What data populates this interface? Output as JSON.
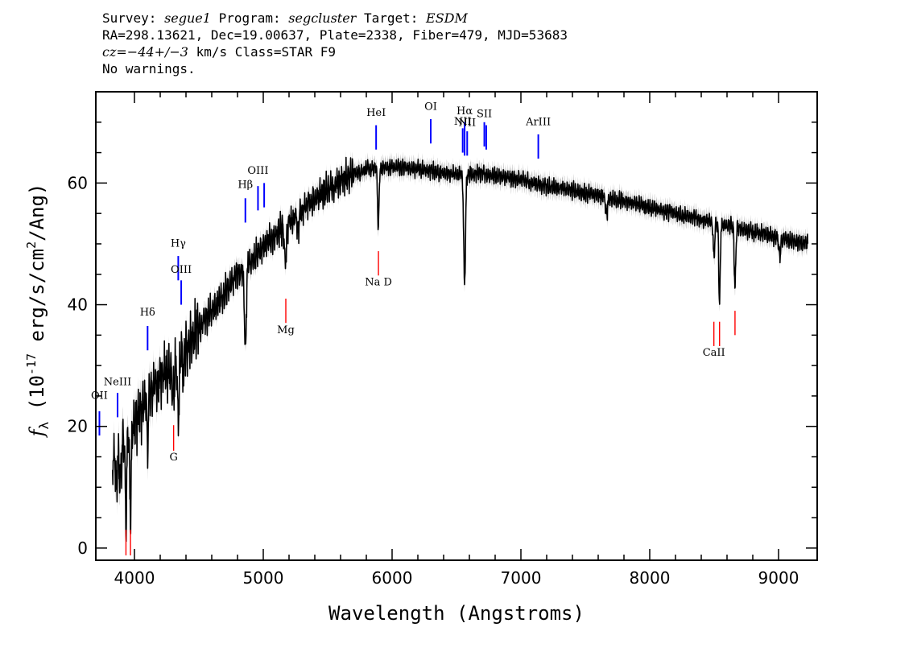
{
  "header": {
    "line1": {
      "survey_label": "Survey: ",
      "survey": "segue1",
      "program_label": " Program: ",
      "program": "segcluster",
      "target_label": " Target: ",
      "target": "ESDM"
    },
    "line2": "RA=298.13621, Dec=19.00637, Plate=2338, Fiber=479, MJD=53683",
    "line3": {
      "cz": "cz=−44+/−3",
      "rest": " km/s Class=STAR F9"
    },
    "line4": "No warnings."
  },
  "colors": {
    "emission": "#0000ff",
    "absorption": "#ff0000",
    "spectrum": "#000000",
    "error": "#b3b3b3"
  },
  "chart_data": {
    "type": "line",
    "title": "",
    "xlabel": "Wavelength (Angstroms)",
    "ylabel": "fλ (10^-17 erg/s/cm^2/Ang)",
    "xlim": [
      3700,
      9300
    ],
    "ylim": [
      -2,
      75
    ],
    "x_ticks": [
      4000,
      5000,
      6000,
      7000,
      8000,
      9000
    ],
    "y_ticks": [
      0,
      20,
      40,
      60
    ],
    "grid": false,
    "continuum": [
      [
        3830,
        14
      ],
      [
        3900,
        17
      ],
      [
        3950,
        19
      ],
      [
        4000,
        20
      ],
      [
        4100,
        25
      ],
      [
        4200,
        28
      ],
      [
        4300,
        30
      ],
      [
        4400,
        33
      ],
      [
        4500,
        36
      ],
      [
        4600,
        39
      ],
      [
        4700,
        42
      ],
      [
        4800,
        45
      ],
      [
        4900,
        47
      ],
      [
        5000,
        49.5
      ],
      [
        5100,
        51.5
      ],
      [
        5200,
        53.5
      ],
      [
        5300,
        55.5
      ],
      [
        5400,
        57.5
      ],
      [
        5500,
        59
      ],
      [
        5600,
        60.5
      ],
      [
        5700,
        61.5
      ],
      [
        5800,
        62.2
      ],
      [
        5900,
        62.5
      ],
      [
        6000,
        62.6
      ],
      [
        6100,
        62.6
      ],
      [
        6200,
        62.3
      ],
      [
        6300,
        62
      ],
      [
        6400,
        61.7
      ],
      [
        6500,
        61.4
      ],
      [
        6600,
        61.6
      ],
      [
        6700,
        61.5
      ],
      [
        6800,
        61.2
      ],
      [
        6900,
        60.8
      ],
      [
        7000,
        60.5
      ],
      [
        7100,
        60
      ],
      [
        7200,
        59.5
      ],
      [
        7300,
        59.2
      ],
      [
        7400,
        58.8
      ],
      [
        7500,
        58.3
      ],
      [
        7600,
        58
      ],
      [
        7700,
        57.5
      ],
      [
        7800,
        57
      ],
      [
        7900,
        56.5
      ],
      [
        8000,
        56
      ],
      [
        8100,
        55.5
      ],
      [
        8200,
        55
      ],
      [
        8300,
        54.5
      ],
      [
        8400,
        54
      ],
      [
        8500,
        53.5
      ],
      [
        8600,
        53
      ],
      [
        8700,
        52.5
      ],
      [
        8800,
        52
      ],
      [
        8900,
        51.5
      ],
      [
        9000,
        51
      ],
      [
        9100,
        50.5
      ],
      [
        9200,
        50
      ]
    ],
    "absorption_features": [
      {
        "x": 3860,
        "depth": 5,
        "width": 10
      },
      {
        "x": 3890,
        "depth": 6,
        "width": 10
      },
      {
        "x": 3934,
        "depth": 14,
        "width": 8
      },
      {
        "x": 3969,
        "depth": 13,
        "width": 8
      },
      {
        "x": 4102,
        "depth": 8,
        "width": 8
      },
      {
        "x": 4300,
        "depth": 5,
        "width": 14
      },
      {
        "x": 4340,
        "depth": 10,
        "width": 10
      },
      {
        "x": 4383,
        "depth": 4,
        "width": 8
      },
      {
        "x": 4861,
        "depth": 14,
        "width": 10
      },
      {
        "x": 5172,
        "depth": 6,
        "width": 12
      },
      {
        "x": 5270,
        "depth": 3,
        "width": 10
      },
      {
        "x": 5893,
        "depth": 10,
        "width": 8
      },
      {
        "x": 6563,
        "depth": 18,
        "width": 10
      },
      {
        "x": 7665,
        "depth": 3,
        "width": 10
      },
      {
        "x": 8498,
        "depth": 6,
        "width": 8
      },
      {
        "x": 8542,
        "depth": 13,
        "width": 8
      },
      {
        "x": 8662,
        "depth": 10,
        "width": 8
      },
      {
        "x": 9010,
        "depth": 3,
        "width": 10
      }
    ],
    "emission_lines": [
      {
        "label": "OII",
        "x": 3728,
        "y1": 18.5,
        "y2": 22.5,
        "label_y": 24.5
      },
      {
        "label": "NeIII",
        "x": 3869,
        "y1": 21.5,
        "y2": 25.5,
        "label_y": 26.8
      },
      {
        "label": "Hδ",
        "x": 4102,
        "y1": 32.5,
        "y2": 36.5,
        "label_y": 38.2
      },
      {
        "label": "Hγ",
        "x": 4340,
        "y1": 44,
        "y2": 48,
        "label_y": 49.5
      },
      {
        "label": "OIII",
        "x": 4363,
        "y1": 40,
        "y2": 44,
        "label_y": 45.2
      },
      {
        "label": "Hβ",
        "x": 4861,
        "y1": 53.5,
        "y2": 57.5,
        "label_y": 59.2
      },
      {
        "label": "OIII",
        "x": 4959,
        "y1": 55.5,
        "y2": 59.5,
        "label_y": 61.5
      },
      {
        "label": "",
        "x": 5007,
        "y1": 56,
        "y2": 60,
        "label_y": 0
      },
      {
        "label": "HeI",
        "x": 5876,
        "y1": 65.5,
        "y2": 69.5,
        "label_y": 71
      },
      {
        "label": "OI",
        "x": 6300,
        "y1": 66.5,
        "y2": 70.5,
        "label_y": 72
      },
      {
        "label": "NII",
        "x": 6548,
        "y1": 65,
        "y2": 69,
        "label_y": 69.6
      },
      {
        "label": "Hα",
        "x": 6563,
        "y1": 64.5,
        "y2": 70,
        "label_y": 71.3
      },
      {
        "label": "NII",
        "x": 6583,
        "y1": 64.5,
        "y2": 68.5,
        "label_y": 69.4
      },
      {
        "label": "SII",
        "x": 6716,
        "y1": 66,
        "y2": 70,
        "label_y": 70.8
      },
      {
        "label": "",
        "x": 6731,
        "y1": 65.5,
        "y2": 69.5,
        "label_y": 0
      },
      {
        "label": "ArIII",
        "x": 7135,
        "y1": 64,
        "y2": 68,
        "label_y": 69.5
      }
    ],
    "absorption_lines": [
      {
        "label": "",
        "x": 3934,
        "y1": -1.2,
        "y2": 3,
        "label_y": 0
      },
      {
        "label": "",
        "x": 3969,
        "y1": -1.2,
        "y2": 3,
        "label_y": 0
      },
      {
        "label": "G",
        "x": 4304,
        "y1": 16,
        "y2": 20.2,
        "label_y": 14.4
      },
      {
        "label": "Mg",
        "x": 5175,
        "y1": 37,
        "y2": 41,
        "label_y": 35.3
      },
      {
        "label": "Na D",
        "x": 5894,
        "y1": 44.8,
        "y2": 48.8,
        "label_y": 43.2
      },
      {
        "label": "CaII",
        "x": 8498,
        "y1": 33.2,
        "y2": 37.2,
        "label_y": 31.6
      },
      {
        "label": "",
        "x": 8542,
        "y1": 33.2,
        "y2": 37.2,
        "label_y": 0
      },
      {
        "label": "",
        "x": 8662,
        "y1": 35,
        "y2": 39,
        "label_y": 0
      }
    ]
  }
}
